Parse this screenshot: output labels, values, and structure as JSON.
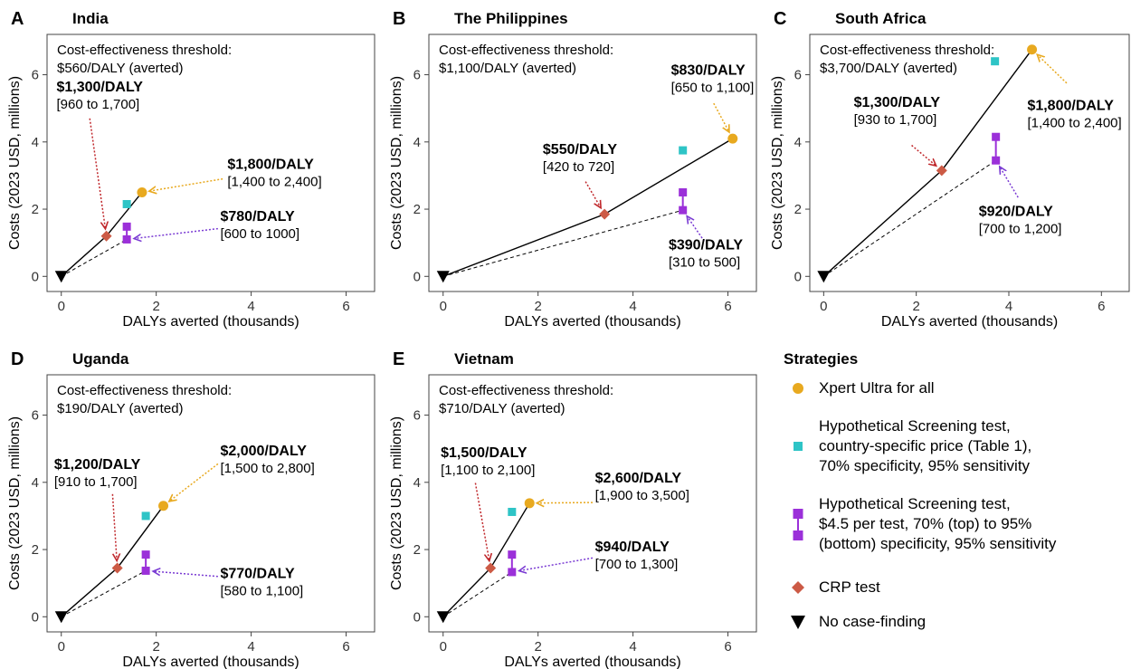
{
  "colors": {
    "xpert": "#E8A91F",
    "screen_country": "#2EC4C6",
    "screen_hypo": "#9B30D9",
    "crp": "#CC5A45",
    "none": "#000000",
    "arrow_xpert": "#E8A91F",
    "arrow_crp": "#C0282C",
    "arrow_hypo": "#7A3BD3"
  },
  "axes": {
    "xlabel": "DALYs averted (thousands)",
    "ylabel": "Costs (2023 USD, millions)",
    "xlim": [
      -0.3,
      6.6
    ],
    "ylim": [
      -0.45,
      7.2
    ],
    "xticks": [
      "0",
      "2",
      "4",
      "6"
    ],
    "yticks": [
      "0",
      "2",
      "4",
      "6"
    ]
  },
  "legend": {
    "title": "Strategies",
    "items": [
      {
        "key": "xpert",
        "shape": "circle",
        "lines": [
          "Xpert Ultra for all"
        ]
      },
      {
        "key": "screen_country",
        "shape": "square",
        "lines": [
          "Hypothetical Screening test,",
          "country-specific price (Table 1),",
          "70% specificity, 95% sensitivity"
        ]
      },
      {
        "key": "screen_hypo",
        "shape": "square-pair",
        "lines": [
          "Hypothetical Screening test,",
          "$4.5 per test, 70% (top) to 95%",
          "(bottom) specificity, 95% sensitivity"
        ]
      },
      {
        "key": "crp",
        "shape": "diamond",
        "lines": [
          "CRP test"
        ]
      },
      {
        "key": "none",
        "shape": "triangle-down",
        "lines": [
          "No case-finding"
        ]
      }
    ]
  },
  "chart_data": [
    {
      "type": "scatter",
      "letter": "A",
      "title": "India",
      "threshold_lines": [
        "Cost-effectiveness threshold:",
        "$560/DALY (averted)"
      ],
      "points": {
        "none": [
          0,
          0
        ],
        "crp": [
          0.95,
          1.2
        ],
        "xpert": [
          1.7,
          2.5
        ],
        "screen_country": [
          1.38,
          2.15
        ],
        "screen_hypo_top": [
          1.38,
          1.48
        ],
        "screen_hypo_bottom": [
          1.38,
          1.1
        ]
      },
      "annotations": [
        {
          "key": "crp",
          "label": "$1,300/DALY",
          "range": "[960 to 1,700]",
          "anchor": [
            -0.1,
            5.5
          ],
          "arrow_from": [
            0.6,
            4.7
          ]
        },
        {
          "key": "xpert",
          "label": "$1,800/DALY",
          "range": "[1,400 to 2,400]",
          "anchor": [
            3.5,
            3.2
          ],
          "arrow_from": [
            3.4,
            2.9
          ]
        },
        {
          "key": "screen_hypo",
          "label": "$780/DALY",
          "range": "[600 to 1000]",
          "anchor": [
            3.35,
            1.65
          ],
          "arrow_from": [
            3.3,
            1.42
          ]
        }
      ]
    },
    {
      "type": "scatter",
      "letter": "B",
      "title": "The Philippines",
      "threshold_lines": [
        "Cost-effectiveness threshold:",
        "$1,100/DALY (averted)"
      ],
      "points": {
        "none": [
          0,
          0
        ],
        "crp": [
          3.4,
          1.85
        ],
        "xpert": [
          6.1,
          4.1
        ],
        "screen_country": [
          5.05,
          3.75
        ],
        "screen_hypo_top": [
          5.05,
          2.5
        ],
        "screen_hypo_bottom": [
          5.05,
          1.97
        ]
      },
      "annotations": [
        {
          "key": "xpert",
          "label": "$830/DALY",
          "range": "[650 to 1,100]",
          "anchor": [
            4.8,
            6.0
          ],
          "arrow_from": [
            5.7,
            5.15
          ]
        },
        {
          "key": "crp",
          "label": "$550/DALY",
          "range": "[420 to 720]",
          "anchor": [
            2.1,
            3.65
          ],
          "arrow_from": [
            3.0,
            2.82
          ]
        },
        {
          "key": "screen_hypo",
          "label": "$390/DALY",
          "range": "[310 to 500]",
          "anchor": [
            4.75,
            0.8
          ],
          "arrow_from": [
            5.5,
            1.05
          ]
        }
      ]
    },
    {
      "type": "scatter",
      "letter": "C",
      "title": "South Africa",
      "threshold_lines": [
        "Cost-effectiveness threshold:",
        "$3,700/DALY (averted)"
      ],
      "points": {
        "none": [
          0,
          0
        ],
        "crp": [
          2.55,
          3.15
        ],
        "xpert": [
          4.5,
          6.75
        ],
        "screen_country": [
          3.7,
          6.4
        ],
        "screen_hypo_top": [
          3.72,
          4.15
        ],
        "screen_hypo_bottom": [
          3.72,
          3.45
        ]
      },
      "annotations": [
        {
          "key": "crp",
          "label": "$1,300/DALY",
          "range": "[930 to 1,700]",
          "anchor": [
            0.65,
            5.05
          ],
          "arrow_from": [
            1.9,
            3.9
          ]
        },
        {
          "key": "xpert",
          "label": "$1,800/DALY",
          "range": "[1,400 to 2,400]",
          "anchor": [
            4.4,
            4.95
          ],
          "arrow_from": [
            5.25,
            5.75
          ]
        },
        {
          "key": "screen_hypo",
          "label": "$920/DALY",
          "range": "[700 to 1,200]",
          "anchor": [
            3.35,
            1.8
          ],
          "arrow_from": [
            4.2,
            2.35
          ]
        }
      ]
    },
    {
      "type": "scatter",
      "letter": "D",
      "title": "Uganda",
      "threshold_lines": [
        "Cost-effectiveness threshold:",
        "$190/DALY (averted)"
      ],
      "points": {
        "none": [
          0,
          0
        ],
        "crp": [
          1.18,
          1.45
        ],
        "xpert": [
          2.15,
          3.3
        ],
        "screen_country": [
          1.78,
          3.0
        ],
        "screen_hypo_top": [
          1.78,
          1.85
        ],
        "screen_hypo_bottom": [
          1.78,
          1.37
        ]
      },
      "annotations": [
        {
          "key": "crp",
          "label": "$1,200/DALY",
          "range": "[910 to 1,700]",
          "anchor": [
            -0.15,
            4.4
          ],
          "arrow_from": [
            1.08,
            3.65
          ]
        },
        {
          "key": "xpert",
          "label": "$2,000/DALY",
          "range": "[1,500 to 2,800]",
          "anchor": [
            3.35,
            4.8
          ],
          "arrow_from": [
            3.3,
            4.55
          ]
        },
        {
          "key": "screen_hypo",
          "label": "$770/DALY",
          "range": "[580 to 1,100]",
          "anchor": [
            3.35,
            1.15
          ],
          "arrow_from": [
            3.3,
            1.2
          ]
        }
      ]
    },
    {
      "type": "scatter",
      "letter": "E",
      "title": "Vietnam",
      "threshold_lines": [
        "Cost-effectiveness threshold:",
        "$710/DALY (averted)"
      ],
      "points": {
        "none": [
          0,
          0
        ],
        "crp": [
          1.0,
          1.45
        ],
        "xpert": [
          1.82,
          3.38
        ],
        "screen_country": [
          1.45,
          3.12
        ],
        "screen_hypo_top": [
          1.45,
          1.85
        ],
        "screen_hypo_bottom": [
          1.45,
          1.33
        ]
      },
      "annotations": [
        {
          "key": "crp",
          "label": "$1,500/DALY",
          "range": "[1,100 to 2,100]",
          "anchor": [
            -0.05,
            4.75
          ],
          "arrow_from": [
            0.68,
            3.98
          ]
        },
        {
          "key": "xpert",
          "label": "$2,600/DALY",
          "range": "[1,900 to 3,500]",
          "anchor": [
            3.2,
            4.0
          ],
          "arrow_from": [
            3.15,
            3.4
          ]
        },
        {
          "key": "screen_hypo",
          "label": "$940/DALY",
          "range": "[700 to 1,300]",
          "anchor": [
            3.2,
            1.95
          ],
          "arrow_from": [
            3.15,
            1.75
          ]
        }
      ]
    }
  ]
}
